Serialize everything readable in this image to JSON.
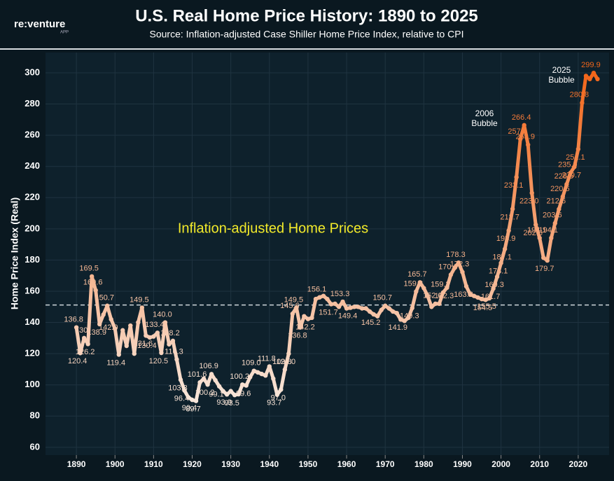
{
  "brand": {
    "name": "re:venture",
    "sub": "APP"
  },
  "chart_data": {
    "type": "line",
    "title": "U.S. Real Home Price History: 1890 to 2025",
    "subtitle": "Source: Inflation-adjusted Case Shiller Home Price Index, relative to CPI",
    "y_label": "Home Price Index (Real)",
    "annotations": [
      {
        "lines": [
          "Inflation-adjusted Home Prices"
        ],
        "color": "#f2ea2a"
      },
      {
        "lines": [
          "2006",
          "Bubble"
        ],
        "color": "#ffffff"
      },
      {
        "lines": [
          "2025",
          "Bubble"
        ],
        "color": "#ffffff"
      }
    ],
    "color_scale": [
      "#f7e6da",
      "#f2661a"
    ],
    "reference_line": 151.2,
    "xlim": [
      1882,
      2028
    ],
    "xticks": [
      1890,
      1900,
      1910,
      1920,
      1930,
      1940,
      1950,
      1960,
      1970,
      1980,
      1990,
      2000,
      2010,
      2020
    ],
    "ylim": [
      55,
      313
    ],
    "yticks": [
      60,
      80,
      100,
      120,
      140,
      160,
      180,
      200,
      220,
      240,
      260,
      280,
      300
    ],
    "grid": true,
    "x": [
      1890,
      1891,
      1892,
      1893,
      1894,
      1895,
      1896,
      1897,
      1898,
      1899,
      1900,
      1901,
      1902,
      1903,
      1904,
      1905,
      1906,
      1907,
      1908,
      1909,
      1910,
      1911,
      1912,
      1913,
      1914,
      1915,
      1916,
      1917,
      1918,
      1919,
      1920,
      1921,
      1922,
      1923,
      1924,
      1925,
      1926,
      1927,
      1928,
      1929,
      1930,
      1931,
      1932,
      1933,
      1934,
      1935,
      1936,
      1937,
      1938,
      1939,
      1940,
      1941,
      1942,
      1943,
      1944,
      1945,
      1946,
      1947,
      1948,
      1949,
      1950,
      1951,
      1952,
      1953,
      1954,
      1955,
      1956,
      1957,
      1958,
      1959,
      1960,
      1961,
      1962,
      1963,
      1964,
      1965,
      1966,
      1967,
      1968,
      1969,
      1970,
      1971,
      1972,
      1973,
      1974,
      1975,
      1976,
      1977,
      1978,
      1979,
      1980,
      1981,
      1982,
      1983,
      1984,
      1985,
      1986,
      1987,
      1988,
      1989,
      1990,
      1991,
      1992,
      1993,
      1994,
      1995,
      1996,
      1997,
      1998,
      1999,
      2000,
      2001,
      2002,
      2003,
      2004,
      2005,
      2006,
      2007,
      2008,
      2009,
      2010,
      2011,
      2012,
      2013,
      2014,
      2015,
      2016,
      2017,
      2018,
      2019,
      2020,
      2021,
      2022,
      2023,
      2024,
      2025
    ],
    "values": [
      136.8,
      120.4,
      130,
      126.2,
      169.5,
      160.6,
      138.9,
      145,
      150.7,
      142.0,
      136,
      119.4,
      135,
      125,
      138,
      120,
      140,
      149.5,
      131.6,
      130.4,
      131,
      133.4,
      120.5,
      140.0,
      126,
      128.2,
      116.3,
      103.3,
      96.4,
      92,
      90.4,
      89.7,
      101.6,
      104,
      100.2,
      106.9,
      103,
      99.1,
      96,
      93.9,
      96,
      93.5,
      94,
      100.2,
      99.6,
      105,
      109.0,
      108,
      107,
      106,
      111.8,
      104,
      93.7,
      97.0,
      109.8,
      120.0,
      145.6,
      149.5,
      136.8,
      144,
      142.2,
      143,
      155,
      156.1,
      157,
      155,
      151.7,
      152,
      150,
      153.3,
      149,
      149.4,
      150,
      150,
      149,
      149,
      147,
      145.2,
      144,
      148,
      150.7,
      149,
      147,
      146,
      141.9,
      141,
      143,
      149.3,
      159.8,
      165.7,
      162,
      157,
      150,
      152.0,
      152,
      159.2,
      162.3,
      170.6,
      175,
      178.3,
      172.3,
      163.2,
      158,
      157,
      156,
      155,
      154.5,
      155.5,
      161.7,
      169.3,
      178.1,
      187.1,
      198.9,
      212.7,
      233.1,
      257.4,
      266.4,
      253.9,
      223.0,
      202.6,
      194.1,
      181.5,
      179.7,
      194.1,
      203.6,
      212.6,
      220.6,
      228.5,
      235.9,
      239.7,
      251.1,
      280.8,
      298,
      296,
      299.9,
      296
    ],
    "value_labels": [
      "136.8",
      "120.4",
      "130",
      "126.2",
      "169.5",
      "160.6",
      "138.9",
      null,
      "150.7",
      "142.0",
      null,
      "119.4",
      null,
      null,
      null,
      null,
      null,
      "149.5",
      "131.6",
      "130.4",
      null,
      "133.4",
      "120.5",
      "140.0",
      null,
      "128.2",
      "116.3",
      "103.3",
      "96.4",
      null,
      "90.4",
      "89.7",
      "101.6",
      null,
      "100.2",
      "106.9",
      null,
      "99.1",
      null,
      "93.9",
      null,
      "93.5",
      null,
      "100.2",
      "99.6",
      null,
      "109.0",
      null,
      null,
      null,
      "111.8",
      null,
      "93.7",
      "97.0",
      "109.8",
      "120.0",
      "145.6",
      "149.5",
      "136.8",
      null,
      "142.2",
      null,
      null,
      "156.1",
      null,
      null,
      "151.7",
      null,
      null,
      "153.3",
      null,
      "149.4",
      null,
      null,
      null,
      null,
      null,
      "145.2",
      null,
      null,
      "150.7",
      null,
      null,
      null,
      "141.9",
      null,
      null,
      "149.3",
      "159.8",
      "165.7",
      null,
      null,
      null,
      "152.0",
      null,
      "159.2",
      "162.3",
      "170.6",
      null,
      "178.3",
      "172.3",
      "163.2",
      null,
      null,
      null,
      null,
      "154.5",
      "155.5",
      "161.7",
      "169.3",
      "178.1",
      "187.1",
      "198.9",
      "212.7",
      "233.1",
      "257.4",
      "266.4",
      "253.9",
      "223.0",
      "202.6",
      "194.1",
      null,
      "179.7",
      "194.1",
      "203.6",
      "212.6",
      "220.6",
      "228.5",
      "235.9",
      "239.7",
      "251.1",
      "280.8",
      null,
      null,
      "299.9",
      null
    ]
  }
}
